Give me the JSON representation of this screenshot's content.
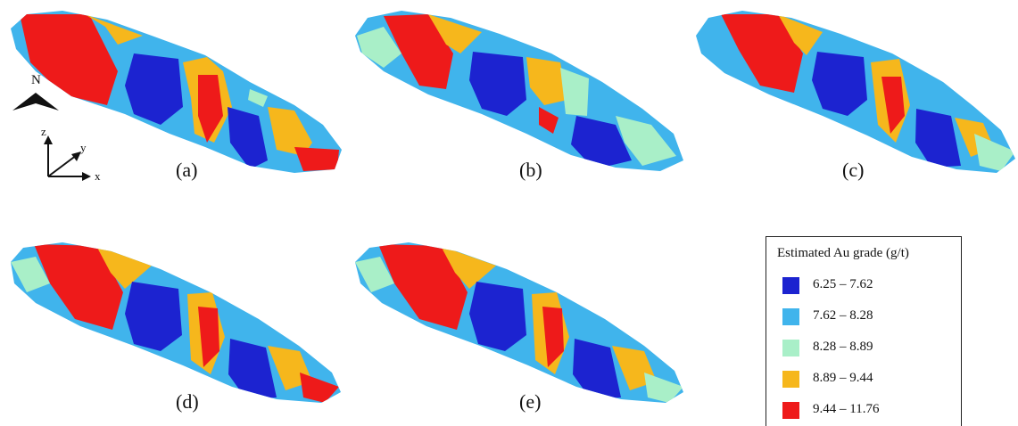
{
  "panels": [
    {
      "id": "a",
      "label": "(a)"
    },
    {
      "id": "b",
      "label": "(b)"
    },
    {
      "id": "c",
      "label": "(c)"
    },
    {
      "id": "d",
      "label": "(d)"
    },
    {
      "id": "e",
      "label": "(e)"
    }
  ],
  "orientation": {
    "north": "N",
    "axes": {
      "z": "z",
      "y": "y",
      "x": "x"
    }
  },
  "legend": {
    "title": "Estimated Au grade (g/t)",
    "classes": [
      {
        "range": "6.25 – 7.62",
        "color": "#1c23d0"
      },
      {
        "range": "7.62 – 8.28",
        "color": "#40b4ec"
      },
      {
        "range": "8.28 – 8.89",
        "color": "#a9efc8"
      },
      {
        "range": "8.89 – 9.44",
        "color": "#f6b71c"
      },
      {
        "range": "9.44 – 11.76",
        "color": "#ee1a1a"
      }
    ]
  }
}
